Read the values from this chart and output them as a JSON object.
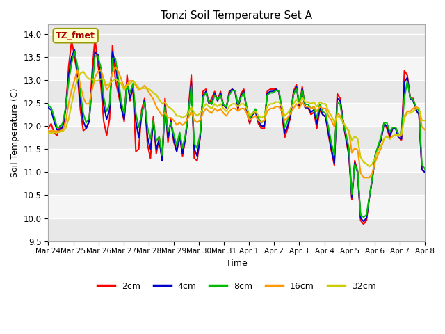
{
  "title": "Tonzi Soil Temperature Set A",
  "xlabel": "Time",
  "ylabel": "Soil Temperature (C)",
  "ylim": [
    9.5,
    14.2
  ],
  "xlim": [
    0,
    15
  ],
  "x_tick_labels": [
    "Mar 24",
    "Mar 25",
    "Mar 26",
    "Mar 27",
    "Mar 28",
    "Mar 29",
    "Mar 30",
    "Mar 31",
    "Apr 1",
    "Apr 2",
    "Apr 3",
    "Apr 4",
    "Apr 5",
    "Apr 6",
    "Apr 7",
    "Apr 8"
  ],
  "annotation_text": "TZ_fmet",
  "annotation_color": "#aa0000",
  "annotation_bg": "#ffffcc",
  "annotation_edge": "#999900",
  "line_colors": {
    "2cm": "#ff0000",
    "4cm": "#0000cc",
    "8cm": "#00bb00",
    "16cm": "#ff9900",
    "32cm": "#cccc00"
  },
  "line_width": 1.5,
  "band_colors": [
    "#e8e8e8",
    "#f5f5f5"
  ],
  "series": {
    "2cm": [
      11.95,
      12.05,
      11.85,
      11.8,
      12.0,
      11.9,
      12.4,
      13.3,
      13.85,
      13.5,
      13.1,
      12.35,
      11.9,
      11.95,
      12.1,
      13.15,
      13.9,
      13.35,
      12.9,
      12.1,
      11.8,
      12.15,
      13.75,
      13.0,
      12.7,
      12.4,
      12.1,
      13.1,
      12.55,
      12.85,
      11.45,
      11.5,
      12.35,
      12.6,
      11.6,
      11.3,
      12.2,
      11.4,
      11.75,
      11.25,
      12.6,
      11.65,
      12.15,
      11.65,
      11.45,
      11.8,
      11.35,
      11.75,
      12.35,
      13.1,
      11.3,
      11.25,
      11.75,
      12.75,
      12.8,
      12.5,
      12.6,
      12.75,
      12.55,
      12.75,
      12.45,
      12.4,
      12.75,
      12.8,
      12.75,
      12.35,
      12.7,
      12.8,
      12.3,
      12.05,
      12.25,
      12.3,
      12.05,
      11.95,
      11.95,
      12.75,
      12.8,
      12.8,
      12.8,
      12.75,
      12.3,
      11.75,
      11.95,
      12.2,
      12.75,
      12.9,
      12.4,
      12.85,
      12.4,
      12.4,
      12.25,
      12.3,
      11.95,
      12.35,
      12.25,
      12.2,
      11.8,
      11.45,
      11.15,
      12.7,
      12.6,
      12.1,
      11.7,
      11.35,
      10.4,
      11.25,
      11.0,
      9.95,
      9.87,
      9.95,
      10.45,
      10.85,
      11.35,
      11.55,
      11.7,
      12.05,
      11.95,
      11.75,
      11.95,
      11.95,
      11.75,
      11.7,
      13.2,
      13.1,
      12.6,
      12.6,
      12.35,
      12.25,
      11.05,
      11.0
    ],
    "4cm": [
      12.4,
      12.35,
      12.1,
      11.92,
      11.9,
      12.0,
      12.4,
      13.1,
      13.5,
      13.65,
      13.15,
      12.55,
      12.1,
      11.95,
      12.1,
      12.9,
      13.6,
      13.55,
      13.05,
      12.45,
      12.15,
      12.35,
      13.6,
      13.35,
      12.85,
      12.4,
      12.15,
      12.95,
      12.6,
      12.85,
      12.1,
      11.75,
      12.25,
      12.55,
      11.75,
      11.5,
      12.1,
      11.5,
      11.7,
      11.25,
      12.45,
      11.75,
      12.1,
      11.7,
      11.45,
      11.8,
      11.4,
      11.75,
      12.3,
      12.95,
      11.5,
      11.35,
      11.75,
      12.65,
      12.75,
      12.5,
      12.5,
      12.7,
      12.55,
      12.7,
      12.45,
      12.4,
      12.7,
      12.8,
      12.75,
      12.4,
      12.65,
      12.75,
      12.35,
      12.1,
      12.25,
      12.35,
      12.1,
      12.0,
      12.0,
      12.7,
      12.75,
      12.75,
      12.8,
      12.75,
      12.35,
      11.85,
      12.0,
      12.25,
      12.7,
      12.85,
      12.45,
      12.8,
      12.4,
      12.4,
      12.3,
      12.35,
      12.05,
      12.4,
      12.25,
      12.2,
      11.85,
      11.5,
      11.2,
      12.6,
      12.55,
      12.1,
      11.75,
      11.4,
      10.45,
      11.2,
      10.98,
      10.0,
      9.93,
      10.0,
      10.45,
      10.85,
      11.35,
      11.55,
      11.7,
      12.05,
      12.0,
      11.8,
      11.95,
      11.95,
      11.75,
      11.72,
      12.95,
      13.05,
      12.6,
      12.55,
      12.35,
      12.25,
      11.05,
      11.0
    ],
    "8cm": [
      12.45,
      12.4,
      12.2,
      11.97,
      11.97,
      12.07,
      12.42,
      12.97,
      13.37,
      13.62,
      13.3,
      12.72,
      12.27,
      12.07,
      12.17,
      12.82,
      13.52,
      13.52,
      13.27,
      12.62,
      12.32,
      12.47,
      13.47,
      13.47,
      13.02,
      12.52,
      12.27,
      12.92,
      12.72,
      12.92,
      12.27,
      11.97,
      12.27,
      12.52,
      11.97,
      11.72,
      12.12,
      11.67,
      11.77,
      11.37,
      12.42,
      11.87,
      12.07,
      11.82,
      11.57,
      11.87,
      11.52,
      11.82,
      12.27,
      12.87,
      11.62,
      11.52,
      11.82,
      12.62,
      12.72,
      12.52,
      12.47,
      12.67,
      12.57,
      12.67,
      12.47,
      12.42,
      12.67,
      12.77,
      12.77,
      12.47,
      12.62,
      12.72,
      12.42,
      12.17,
      12.27,
      12.37,
      12.17,
      12.07,
      12.12,
      12.67,
      12.72,
      12.72,
      12.77,
      12.77,
      12.42,
      11.97,
      12.12,
      12.32,
      12.67,
      12.82,
      12.52,
      12.77,
      12.47,
      12.47,
      12.37,
      12.42,
      12.17,
      12.47,
      12.32,
      12.27,
      11.97,
      11.62,
      11.37,
      12.52,
      12.47,
      12.07,
      11.82,
      11.52,
      10.52,
      11.17,
      11.02,
      10.07,
      10.02,
      10.07,
      10.47,
      10.87,
      11.37,
      11.57,
      11.77,
      12.07,
      12.07,
      11.87,
      11.97,
      11.97,
      11.82,
      11.82,
      12.62,
      12.97,
      12.62,
      12.57,
      12.42,
      12.32,
      11.17,
      11.07
    ],
    "16cm": [
      11.88,
      11.9,
      11.89,
      11.89,
      11.89,
      11.92,
      12.1,
      12.5,
      12.78,
      13.0,
      13.22,
      12.88,
      12.62,
      12.48,
      12.48,
      12.78,
      13.05,
      13.18,
      13.22,
      13.02,
      12.78,
      12.88,
      13.15,
      13.28,
      13.18,
      13.02,
      12.82,
      12.92,
      12.98,
      12.98,
      12.88,
      12.78,
      12.82,
      12.88,
      12.78,
      12.68,
      12.58,
      12.42,
      12.32,
      12.22,
      12.3,
      12.18,
      12.18,
      12.12,
      12.02,
      12.08,
      12.02,
      12.08,
      12.18,
      12.32,
      12.12,
      12.08,
      12.12,
      12.28,
      12.38,
      12.32,
      12.28,
      12.38,
      12.32,
      12.38,
      12.28,
      12.22,
      12.32,
      12.38,
      12.38,
      12.32,
      12.38,
      12.38,
      12.28,
      12.12,
      12.18,
      12.22,
      12.12,
      12.08,
      12.12,
      12.32,
      12.38,
      12.38,
      12.42,
      12.42,
      12.32,
      12.12,
      12.18,
      12.28,
      12.38,
      12.48,
      12.38,
      12.52,
      12.42,
      12.42,
      12.38,
      12.42,
      12.32,
      12.42,
      12.38,
      12.38,
      12.22,
      12.12,
      11.98,
      12.28,
      12.22,
      12.08,
      11.98,
      11.88,
      11.42,
      11.52,
      11.48,
      10.98,
      10.88,
      10.88,
      10.88,
      10.98,
      11.22,
      11.38,
      11.52,
      11.72,
      11.78,
      11.72,
      11.78,
      11.82,
      11.78,
      11.8,
      12.22,
      12.32,
      12.32,
      12.38,
      12.42,
      12.38,
      11.98,
      11.92
    ],
    "32cm": [
      11.84,
      11.85,
      11.86,
      11.86,
      11.87,
      11.89,
      11.96,
      12.16,
      12.48,
      12.78,
      13.02,
      13.14,
      13.18,
      13.08,
      13.02,
      13.02,
      12.98,
      12.98,
      13.02,
      13.02,
      12.88,
      12.92,
      12.98,
      13.02,
      12.98,
      12.92,
      12.78,
      12.88,
      12.92,
      12.98,
      12.92,
      12.82,
      12.82,
      12.82,
      12.82,
      12.78,
      12.72,
      12.68,
      12.58,
      12.48,
      12.52,
      12.42,
      12.38,
      12.32,
      12.22,
      12.22,
      12.18,
      12.22,
      12.28,
      12.42,
      12.28,
      12.22,
      12.28,
      12.38,
      12.48,
      12.42,
      12.38,
      12.48,
      12.42,
      12.48,
      12.38,
      12.32,
      12.42,
      12.48,
      12.48,
      12.42,
      12.48,
      12.48,
      12.38,
      12.22,
      12.28,
      12.32,
      12.22,
      12.18,
      12.22,
      12.42,
      12.48,
      12.48,
      12.52,
      12.52,
      12.42,
      12.22,
      12.28,
      12.38,
      12.48,
      12.58,
      12.48,
      12.62,
      12.52,
      12.52,
      12.48,
      12.52,
      12.42,
      12.52,
      12.48,
      12.48,
      12.32,
      12.22,
      12.08,
      12.22,
      12.18,
      12.08,
      11.98,
      11.9,
      11.68,
      11.78,
      11.72,
      11.32,
      11.22,
      11.18,
      11.12,
      11.18,
      11.32,
      11.48,
      11.58,
      11.72,
      11.78,
      11.72,
      11.78,
      11.82,
      11.8,
      11.82,
      12.18,
      12.28,
      12.28,
      12.32,
      12.38,
      12.38,
      12.12,
      12.12
    ]
  }
}
